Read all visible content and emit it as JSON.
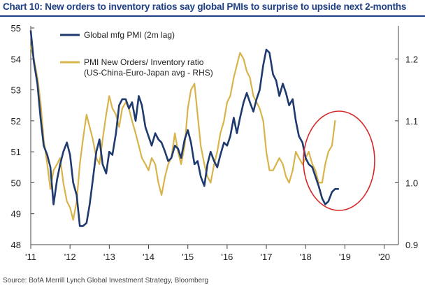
{
  "title": "Chart 10: New orders to inventory ratios say global PMIs to surprise to upside next 2-months",
  "source": "Source:  BofA Merrill Lynch Global Investment Strategy, Bloomberg",
  "colors": {
    "pmi": "#1f3a6e",
    "ratio": "#d9b44a",
    "circle": "#d62728",
    "title": "#1f3f86"
  },
  "chart_data": {
    "type": "line",
    "title": "Chart 10: New orders to inventory ratios say global PMIs to surprise to upside next 2-months",
    "x_tick_labels": [
      "'11",
      "'12",
      "'13",
      "'14",
      "'15",
      "'16",
      "'17",
      "'18",
      "'19",
      "'20"
    ],
    "x_tick_values": [
      2011,
      2012,
      2013,
      2014,
      2015,
      2016,
      2017,
      2018,
      2019,
      2020
    ],
    "xlim": [
      2011,
      2020.15
    ],
    "ylim_left": [
      48,
      55
    ],
    "y_left_ticks": [
      48,
      49,
      50,
      51,
      52,
      53,
      54,
      55
    ],
    "ylim_right": [
      0.9,
      1.25
    ],
    "y_right_ticks": [
      0.9,
      1.0,
      1.1,
      1.2
    ],
    "y_right_tick_labels": [
      "0.9",
      "1.0",
      "1.1",
      "1.2"
    ],
    "legend_position": "top-left",
    "annotation": "red circle highlighting 2019 divergence",
    "series": [
      {
        "name": "Global mfg PMI (2m lag)",
        "axis": "left",
        "x": [
          2011.0,
          2011.08,
          2011.17,
          2011.25,
          2011.33,
          2011.42,
          2011.5,
          2011.58,
          2011.67,
          2011.75,
          2011.83,
          2011.92,
          2012.0,
          2012.08,
          2012.17,
          2012.25,
          2012.33,
          2012.42,
          2012.5,
          2012.58,
          2012.67,
          2012.75,
          2012.83,
          2012.92,
          2013.0,
          2013.08,
          2013.17,
          2013.25,
          2013.33,
          2013.42,
          2013.5,
          2013.58,
          2013.67,
          2013.75,
          2013.83,
          2013.92,
          2014.0,
          2014.08,
          2014.17,
          2014.25,
          2014.33,
          2014.42,
          2014.5,
          2014.58,
          2014.67,
          2014.75,
          2014.83,
          2014.92,
          2015.0,
          2015.08,
          2015.17,
          2015.25,
          2015.33,
          2015.42,
          2015.5,
          2015.58,
          2015.67,
          2015.75,
          2015.83,
          2015.92,
          2016.0,
          2016.08,
          2016.17,
          2016.25,
          2016.33,
          2016.42,
          2016.5,
          2016.58,
          2016.67,
          2016.75,
          2016.83,
          2016.92,
          2017.0,
          2017.08,
          2017.17,
          2017.25,
          2017.33,
          2017.42,
          2017.5,
          2017.58,
          2017.67,
          2017.75,
          2017.83,
          2017.92,
          2018.0,
          2018.08,
          2018.17,
          2018.25,
          2018.33,
          2018.42,
          2018.5,
          2018.58,
          2018.67,
          2018.75,
          2018.83,
          2018.92,
          2019.0,
          2019.08,
          2019.17,
          2019.25,
          2019.33,
          2019.42,
          2019.5,
          2019.58,
          2019.67
        ],
        "values": [
          54.9,
          53.9,
          53.2,
          52.1,
          51.2,
          50.9,
          50.5,
          49.3,
          50.1,
          50.6,
          51.0,
          51.3,
          50.9,
          50.0,
          49.6,
          48.6,
          48.6,
          48.7,
          49.3,
          50.1,
          51.0,
          51.4,
          50.6,
          50.3,
          51.0,
          50.9,
          51.6,
          52.5,
          52.7,
          52.7,
          52.4,
          52.6,
          52.0,
          52.8,
          52.5,
          51.8,
          51.5,
          51.2,
          51.6,
          51.4,
          51.3,
          51.0,
          50.7,
          50.8,
          51.2,
          51.1,
          50.8,
          51.4,
          51.7,
          51.3,
          50.6,
          50.7,
          50.2,
          49.9,
          50.6,
          51.0,
          50.7,
          50.5,
          50.9,
          51.3,
          51.2,
          51.5,
          52.1,
          51.6,
          52.1,
          52.6,
          52.9,
          52.6,
          52.3,
          52.7,
          53.0,
          53.8,
          54.3,
          54.2,
          53.5,
          53.3,
          52.8,
          53.2,
          52.9,
          52.5,
          52.7,
          52.0,
          51.5,
          51.3,
          50.8,
          50.6,
          50.5,
          50.2,
          49.9,
          49.5,
          49.3,
          49.4,
          49.7,
          49.8,
          49.8,
          null,
          null,
          null,
          null,
          null,
          null,
          null,
          null,
          null,
          null
        ],
        "color": "#1f3a6e"
      },
      {
        "name": "PMI New Orders/ Inventory ratio (US-China-Euro-Japan avg - RHS)",
        "axis": "right",
        "x": [
          2011.0,
          2011.08,
          2011.17,
          2011.25,
          2011.33,
          2011.42,
          2011.5,
          2011.58,
          2011.67,
          2011.75,
          2011.83,
          2011.92,
          2012.0,
          2012.08,
          2012.17,
          2012.25,
          2012.33,
          2012.42,
          2012.5,
          2012.58,
          2012.67,
          2012.75,
          2012.83,
          2012.92,
          2013.0,
          2013.08,
          2013.17,
          2013.25,
          2013.33,
          2013.42,
          2013.5,
          2013.58,
          2013.67,
          2013.75,
          2013.83,
          2013.92,
          2014.0,
          2014.08,
          2014.17,
          2014.25,
          2014.33,
          2014.42,
          2014.5,
          2014.58,
          2014.67,
          2014.75,
          2014.83,
          2014.92,
          2015.0,
          2015.08,
          2015.17,
          2015.25,
          2015.33,
          2015.42,
          2015.5,
          2015.58,
          2015.67,
          2015.75,
          2015.83,
          2015.92,
          2016.0,
          2016.08,
          2016.17,
          2016.25,
          2016.33,
          2016.42,
          2016.5,
          2016.58,
          2016.67,
          2016.75,
          2016.83,
          2016.92,
          2017.0,
          2017.08,
          2017.17,
          2017.25,
          2017.33,
          2017.42,
          2017.5,
          2017.58,
          2017.67,
          2017.75,
          2017.83,
          2017.92,
          2018.0,
          2018.08,
          2018.17,
          2018.25,
          2018.33,
          2018.42,
          2018.5,
          2018.58,
          2018.67,
          2018.75,
          2018.83,
          2018.92,
          2019.0,
          2019.08,
          2019.17,
          2019.25,
          2019.33,
          2019.42,
          2019.5,
          2019.58,
          2019.67
        ],
        "values": [
          1.22,
          1.2,
          1.17,
          1.13,
          1.07,
          1.03,
          0.99,
          1.02,
          1.03,
          1.04,
          1.0,
          0.97,
          0.96,
          0.94,
          0.97,
          1.03,
          1.07,
          1.11,
          1.09,
          1.07,
          1.04,
          1.03,
          1.07,
          1.11,
          1.14,
          1.12,
          1.11,
          1.09,
          1.12,
          1.13,
          1.12,
          1.1,
          1.08,
          1.06,
          1.04,
          1.03,
          1.02,
          1.04,
          1.03,
          1.0,
          0.98,
          1.01,
          1.03,
          1.04,
          1.08,
          1.05,
          1.03,
          1.06,
          1.12,
          1.15,
          1.16,
          1.11,
          1.06,
          1.03,
          1.01,
          1.0,
          1.03,
          1.05,
          1.08,
          1.1,
          1.13,
          1.14,
          1.17,
          1.19,
          1.21,
          1.2,
          1.18,
          1.17,
          1.14,
          1.13,
          1.12,
          1.1,
          1.05,
          1.02,
          1.02,
          1.03,
          1.04,
          1.03,
          1.01,
          1.0,
          1.02,
          1.05,
          1.04,
          1.03,
          1.04,
          1.05,
          1.03,
          1.02,
          1.0,
          1.0,
          1.03,
          1.05,
          1.06,
          1.1,
          null,
          null,
          null,
          null,
          null,
          null,
          null,
          null,
          null,
          null,
          null
        ],
        "color": "#d9b44a"
      }
    ]
  }
}
